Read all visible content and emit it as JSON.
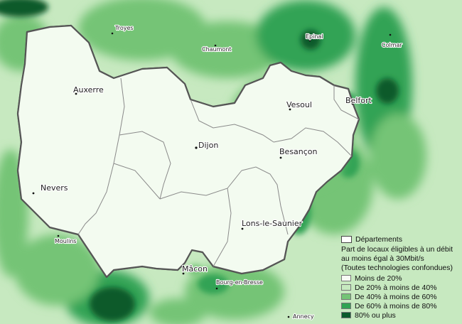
{
  "map": {
    "colors": {
      "lt20": "#f7fcf5",
      "p20_40": "#c7e9c0",
      "p40_60": "#74c476",
      "p60_80": "#31a354",
      "p80plus": "#0a5a2b",
      "boundary": "#555555"
    },
    "cities": [
      {
        "id": "troyes",
        "name": "Troyes",
        "size": "minor"
      },
      {
        "id": "chaumont",
        "name": "Chaumont",
        "size": "minor"
      },
      {
        "id": "epinal",
        "name": "Epinal",
        "size": "minor"
      },
      {
        "id": "colmar",
        "name": "Colmar",
        "size": "minor"
      },
      {
        "id": "auxerre",
        "name": "Auxerre",
        "size": "major"
      },
      {
        "id": "vesoul",
        "name": "Vesoul",
        "size": "major"
      },
      {
        "id": "belfort",
        "name": "Belfort",
        "size": "major"
      },
      {
        "id": "dijon",
        "name": "Dijon",
        "size": "major"
      },
      {
        "id": "besancon",
        "name": "Besançon",
        "size": "major"
      },
      {
        "id": "nevers",
        "name": "Nevers",
        "size": "major"
      },
      {
        "id": "lons",
        "name": "Lons-le-Saunier",
        "size": "major"
      },
      {
        "id": "moulins",
        "name": "Moulins",
        "size": "minor"
      },
      {
        "id": "macon",
        "name": "Mâcon",
        "size": "major"
      },
      {
        "id": "bourg",
        "name": "Bourg-en-Bresse",
        "size": "minor"
      },
      {
        "id": "annecy",
        "name": "Annecy",
        "size": "minor"
      }
    ]
  },
  "legend": {
    "departments_label": "Départements",
    "title_lines": [
      "Part de locaux éligibles à un débit",
      "au moins égal à 30Mbit/s",
      "(Toutes technologies confondues)"
    ],
    "classes": [
      {
        "label": "Moins de 20%",
        "color": "#f7fcf5"
      },
      {
        "label": "De 20% à moins de 40%",
        "color": "#c7e9c0"
      },
      {
        "label": "De 40% à moins de 60%",
        "color": "#74c476"
      },
      {
        "label": "De 60% à moins de 80%",
        "color": "#31a354"
      },
      {
        "label": "80% ou plus",
        "color": "#0a5a2b"
      }
    ]
  }
}
